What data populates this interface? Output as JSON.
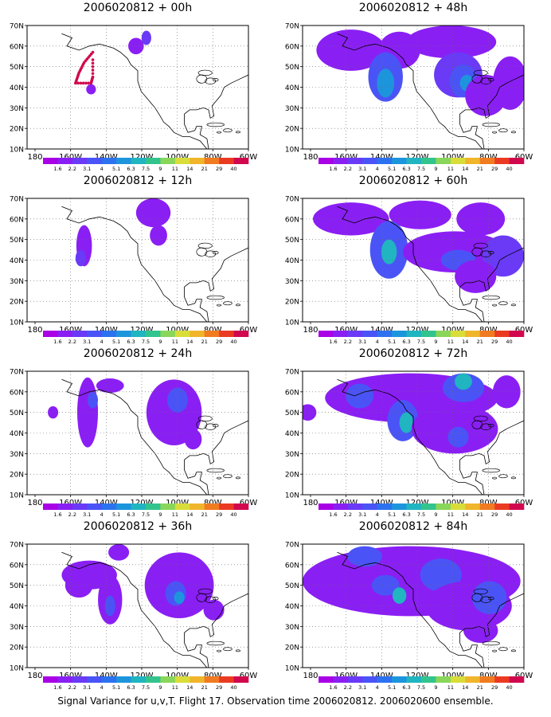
{
  "footer": {
    "text": "Signal Variance for u,v,T. Flight 17. Observation time 2006020812. 2006020600 ensemble."
  },
  "colorbar": {
    "labels": [
      "1.6",
      "2.2",
      "3.1",
      "4",
      "5.1",
      "6.3",
      "7.5",
      "9",
      "11",
      "14",
      "21",
      "29",
      "40"
    ],
    "colors": [
      "#a900e5",
      "#8a1ff4",
      "#6a3af7",
      "#4a54f6",
      "#2c72f0",
      "#1d95dd",
      "#20b5c0",
      "#33c48e",
      "#89d65a",
      "#d9dd39",
      "#f0b52b",
      "#f07b20",
      "#ea3b22",
      "#d1084e"
    ]
  },
  "chart_data": [
    {
      "type": "heatmap",
      "title": "2006020812 + 00h",
      "x_ticks": [
        "180",
        "160W",
        "140W",
        "120W",
        "100W",
        "80W",
        "60W"
      ],
      "y_ticks": [
        "10N",
        "20N",
        "30N",
        "40N",
        "50N",
        "60N",
        "70N"
      ],
      "lon_range": [
        -188,
        -60
      ],
      "lat_range": [
        10,
        70
      ],
      "features": [
        {
          "kind": "blob",
          "lon": -151,
          "lat": 39,
          "rx": 2.8,
          "ry": 2.5,
          "level": 1
        },
        {
          "kind": "blob",
          "lon": -125,
          "lat": 60,
          "rx": 4.5,
          "ry": 4,
          "level": 1
        },
        {
          "kind": "blob",
          "lon": -119,
          "lat": 64,
          "rx": 2.8,
          "ry": 3.5,
          "level": 2
        },
        {
          "kind": "track",
          "points": [
            [
              -150,
              57
            ],
            [
              -155,
              52
            ],
            [
              -158,
              47
            ],
            [
              -160,
              42
            ],
            [
              -151,
              42
            ],
            [
              -150,
              45
            ],
            [
              -150,
              55
            ]
          ],
          "color": "#d1084e"
        }
      ]
    },
    {
      "type": "heatmap",
      "title": "2006020812 + 48h",
      "x_ticks": [
        "180",
        "160W",
        "140W",
        "120W",
        "100W",
        "80W",
        "60W"
      ],
      "y_ticks": [
        "10N",
        "20N",
        "30N",
        "40N",
        "50N",
        "60N",
        "70N"
      ],
      "lon_range": [
        -188,
        -60
      ],
      "lat_range": [
        10,
        70
      ],
      "features": [
        {
          "kind": "blob",
          "lon": -160,
          "lat": 58,
          "rx": 20,
          "ry": 10,
          "level": 1
        },
        {
          "kind": "blob",
          "lon": -132,
          "lat": 58,
          "rx": 12,
          "ry": 9,
          "level": 1
        },
        {
          "kind": "blob",
          "lon": -102,
          "lat": 62,
          "rx": 26,
          "ry": 8,
          "level": 1
        },
        {
          "kind": "blob",
          "lon": -140,
          "lat": 45,
          "rx": 10,
          "ry": 12,
          "level": 3
        },
        {
          "kind": "blob",
          "lon": -140,
          "lat": 42,
          "rx": 5,
          "ry": 7,
          "level": 5
        },
        {
          "kind": "blob",
          "lon": -98,
          "lat": 46,
          "rx": 14,
          "ry": 11,
          "level": 2
        },
        {
          "kind": "blob",
          "lon": -95,
          "lat": 43,
          "rx": 8,
          "ry": 8,
          "level": 3
        },
        {
          "kind": "blob",
          "lon": -93,
          "lat": 42,
          "rx": 4,
          "ry": 4,
          "level": 5
        },
        {
          "kind": "blob",
          "lon": -82,
          "lat": 36,
          "rx": 12,
          "ry": 10,
          "level": 1
        },
        {
          "kind": "blob",
          "lon": -68,
          "lat": 42,
          "rx": 10,
          "ry": 13,
          "level": 1
        }
      ]
    },
    {
      "type": "heatmap",
      "title": "2006020812 + 12h",
      "x_ticks": [
        "180",
        "160W",
        "140W",
        "120W",
        "100W",
        "80W",
        "60W"
      ],
      "y_ticks": [
        "10N",
        "20N",
        "30N",
        "40N",
        "50N",
        "60N",
        "70N"
      ],
      "lon_range": [
        -188,
        -60
      ],
      "lat_range": [
        10,
        70
      ],
      "features": [
        {
          "kind": "blob",
          "lon": -155,
          "lat": 47,
          "rx": 4.5,
          "ry": 10,
          "level": 1
        },
        {
          "kind": "blob",
          "lon": -157,
          "lat": 41,
          "rx": 3,
          "ry": 4,
          "level": 2
        },
        {
          "kind": "blob",
          "lon": -115,
          "lat": 63,
          "rx": 10,
          "ry": 7,
          "level": 1
        },
        {
          "kind": "blob",
          "lon": -112,
          "lat": 52,
          "rx": 5,
          "ry": 5,
          "level": 1
        }
      ]
    },
    {
      "type": "heatmap",
      "title": "2006020812 + 60h",
      "x_ticks": [
        "180",
        "160W",
        "140W",
        "120W",
        "100W",
        "80W",
        "60W"
      ],
      "y_ticks": [
        "10N",
        "20N",
        "30N",
        "40N",
        "50N",
        "60N",
        "70N"
      ],
      "lon_range": [
        -188,
        -60
      ],
      "lat_range": [
        10,
        70
      ],
      "features": [
        {
          "kind": "blob",
          "lon": -160,
          "lat": 60,
          "rx": 22,
          "ry": 8,
          "level": 1
        },
        {
          "kind": "blob",
          "lon": -120,
          "lat": 62,
          "rx": 18,
          "ry": 7,
          "level": 1
        },
        {
          "kind": "blob",
          "lon": -85,
          "lat": 60,
          "rx": 14,
          "ry": 8,
          "level": 1
        },
        {
          "kind": "blob",
          "lon": -138,
          "lat": 45,
          "rx": 11,
          "ry": 14,
          "level": 3
        },
        {
          "kind": "blob",
          "lon": -138,
          "lat": 44,
          "rx": 4.5,
          "ry": 6,
          "level": 6
        },
        {
          "kind": "blob",
          "lon": -100,
          "lat": 44,
          "rx": 30,
          "ry": 10,
          "level": 1
        },
        {
          "kind": "blob",
          "lon": -98,
          "lat": 40,
          "rx": 10,
          "ry": 5,
          "level": 3
        },
        {
          "kind": "blob",
          "lon": -72,
          "lat": 42,
          "rx": 12,
          "ry": 10,
          "level": 2
        },
        {
          "kind": "blob",
          "lon": -88,
          "lat": 32,
          "rx": 12,
          "ry": 8,
          "level": 1
        }
      ]
    },
    {
      "type": "heatmap",
      "title": "2006020812 + 24h",
      "x_ticks": [
        "180",
        "160W",
        "140W",
        "120W",
        "100W",
        "80W",
        "60W"
      ],
      "y_ticks": [
        "10N",
        "20N",
        "30N",
        "40N",
        "50N",
        "60N",
        "70N"
      ],
      "lon_range": [
        -188,
        -60
      ],
      "lat_range": [
        10,
        70
      ],
      "features": [
        {
          "kind": "blob",
          "lon": -173,
          "lat": 50,
          "rx": 3,
          "ry": 3,
          "level": 1
        },
        {
          "kind": "blob",
          "lon": -153,
          "lat": 50,
          "rx": 6,
          "ry": 17,
          "level": 1
        },
        {
          "kind": "blob",
          "lon": -150,
          "lat": 56,
          "rx": 3,
          "ry": 4,
          "level": 3
        },
        {
          "kind": "blob",
          "lon": -140,
          "lat": 63,
          "rx": 8,
          "ry": 3.5,
          "level": 1
        },
        {
          "kind": "blob",
          "lon": -103,
          "lat": 50,
          "rx": 16,
          "ry": 16,
          "level": 1
        },
        {
          "kind": "blob",
          "lon": -101,
          "lat": 56,
          "rx": 6,
          "ry": 6,
          "level": 3
        },
        {
          "kind": "blob",
          "lon": -92,
          "lat": 37,
          "rx": 5,
          "ry": 5,
          "level": 1
        }
      ]
    },
    {
      "type": "heatmap",
      "title": "2006020812 + 72h",
      "x_ticks": [
        "180",
        "160W",
        "140W",
        "120W",
        "100W",
        "80W",
        "60W"
      ],
      "y_ticks": [
        "10N",
        "20N",
        "30N",
        "40N",
        "50N",
        "60N",
        "70N"
      ],
      "lon_range": [
        -188,
        -60
      ],
      "lat_range": [
        10,
        70
      ],
      "features": [
        {
          "kind": "blob",
          "lon": -125,
          "lat": 57,
          "rx": 50,
          "ry": 12,
          "level": 1
        },
        {
          "kind": "blob",
          "lon": -185,
          "lat": 50,
          "rx": 5,
          "ry": 4,
          "level": 1
        },
        {
          "kind": "blob",
          "lon": -155,
          "lat": 58,
          "rx": 8,
          "ry": 6,
          "level": 3
        },
        {
          "kind": "blob",
          "lon": -130,
          "lat": 46,
          "rx": 9,
          "ry": 10,
          "level": 3
        },
        {
          "kind": "blob",
          "lon": -128,
          "lat": 45,
          "rx": 4,
          "ry": 5,
          "level": 6
        },
        {
          "kind": "blob",
          "lon": -95,
          "lat": 62,
          "rx": 12,
          "ry": 7,
          "level": 3
        },
        {
          "kind": "blob",
          "lon": -95,
          "lat": 65,
          "rx": 5,
          "ry": 4,
          "level": 6
        },
        {
          "kind": "blob",
          "lon": -100,
          "lat": 42,
          "rx": 25,
          "ry": 12,
          "level": 1
        },
        {
          "kind": "blob",
          "lon": -98,
          "lat": 38,
          "rx": 6,
          "ry": 5,
          "level": 3
        },
        {
          "kind": "blob",
          "lon": -70,
          "lat": 60,
          "rx": 8,
          "ry": 8,
          "level": 1
        }
      ]
    },
    {
      "type": "heatmap",
      "title": "2006020812 + 36h",
      "x_ticks": [
        "180",
        "160W",
        "140W",
        "120W",
        "100W",
        "80W",
        "60W"
      ],
      "y_ticks": [
        "10N",
        "20N",
        "30N",
        "40N",
        "50N",
        "60N",
        "70N"
      ],
      "lon_range": [
        -188,
        -60
      ],
      "lat_range": [
        10,
        70
      ],
      "features": [
        {
          "kind": "blob",
          "lon": -152,
          "lat": 55,
          "rx": 16,
          "ry": 7,
          "level": 1
        },
        {
          "kind": "blob",
          "lon": -140,
          "lat": 43,
          "rx": 7,
          "ry": 12,
          "level": 1
        },
        {
          "kind": "blob",
          "lon": -140,
          "lat": 40,
          "rx": 3,
          "ry": 5,
          "level": 3
        },
        {
          "kind": "blob",
          "lon": -158,
          "lat": 50,
          "rx": 8,
          "ry": 6,
          "level": 1
        },
        {
          "kind": "blob",
          "lon": -100,
          "lat": 50,
          "rx": 20,
          "ry": 16,
          "level": 1
        },
        {
          "kind": "blob",
          "lon": -102,
          "lat": 46,
          "rx": 6,
          "ry": 6,
          "level": 3
        },
        {
          "kind": "blob",
          "lon": -100,
          "lat": 44,
          "rx": 3,
          "ry": 3,
          "level": 5
        },
        {
          "kind": "blob",
          "lon": -135,
          "lat": 66,
          "rx": 6,
          "ry": 4,
          "level": 1
        },
        {
          "kind": "blob",
          "lon": -80,
          "lat": 38,
          "rx": 6,
          "ry": 5,
          "level": 1
        }
      ]
    },
    {
      "type": "heatmap",
      "title": "2006020812 + 84h",
      "x_ticks": [
        "180",
        "160W",
        "140W",
        "120W",
        "100W",
        "80W",
        "60W"
      ],
      "y_ticks": [
        "10N",
        "20N",
        "30N",
        "40N",
        "50N",
        "60N",
        "70N"
      ],
      "lon_range": [
        -188,
        -60
      ],
      "lat_range": [
        10,
        70
      ],
      "features": [
        {
          "kind": "blob",
          "lon": -125,
          "lat": 52,
          "rx": 63,
          "ry": 17,
          "level": 1
        },
        {
          "kind": "blob",
          "lon": -152,
          "lat": 64,
          "rx": 10,
          "ry": 5,
          "level": 3
        },
        {
          "kind": "blob",
          "lon": -140,
          "lat": 50,
          "rx": 8,
          "ry": 5,
          "level": 3
        },
        {
          "kind": "blob",
          "lon": -132,
          "lat": 45,
          "rx": 4,
          "ry": 4,
          "level": 6
        },
        {
          "kind": "blob",
          "lon": -108,
          "lat": 55,
          "rx": 12,
          "ry": 8,
          "level": 3
        },
        {
          "kind": "blob",
          "lon": -92,
          "lat": 40,
          "rx": 25,
          "ry": 12,
          "level": 1
        },
        {
          "kind": "blob",
          "lon": -80,
          "lat": 44,
          "rx": 10,
          "ry": 8,
          "level": 3
        },
        {
          "kind": "blob",
          "lon": -85,
          "lat": 28,
          "rx": 10,
          "ry": 6,
          "level": 1
        }
      ]
    }
  ]
}
